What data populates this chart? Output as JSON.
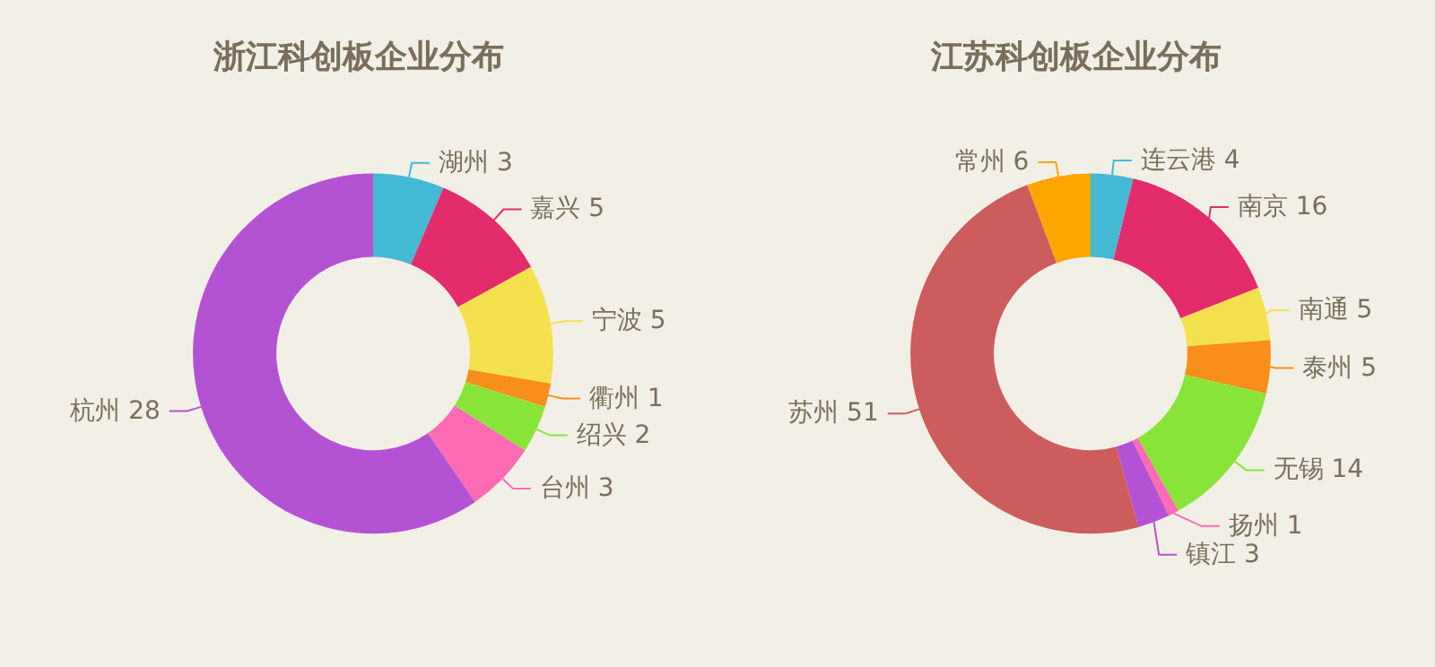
{
  "chart_data": [
    {
      "type": "donut",
      "title": "浙江科创板企业分布",
      "categories": [
        "湖州",
        "嘉兴",
        "宁波",
        "衢州",
        "绍兴",
        "台州",
        "杭州"
      ],
      "values": [
        3,
        5,
        5,
        1,
        2,
        3,
        28
      ],
      "colors": [
        "#44b9d4",
        "#e22c6c",
        "#f5e04e",
        "#fa8e1a",
        "#89e43a",
        "#fd6bb5",
        "#b452d4"
      ],
      "data_labels": true
    },
    {
      "type": "donut",
      "title": "江苏科创板企业分布",
      "categories": [
        "连云港",
        "南京",
        "南通",
        "泰州",
        "无锡",
        "扬州",
        "镇江",
        "苏州",
        "常州"
      ],
      "values": [
        4,
        16,
        5,
        5,
        14,
        1,
        3,
        51,
        6
      ],
      "colors": [
        "#44b9d4",
        "#e22c6c",
        "#f5e04e",
        "#fa8e1a",
        "#89e43a",
        "#fd6bb5",
        "#b452d4",
        "#cd5c5c",
        "#ffa500"
      ],
      "data_labels": true
    }
  ]
}
